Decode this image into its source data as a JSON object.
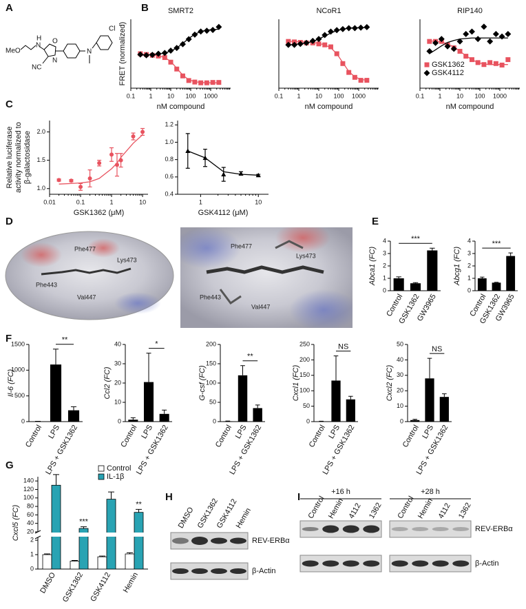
{
  "panel_labels": [
    "A",
    "B",
    "C",
    "D",
    "E",
    "F",
    "G",
    "H",
    "I"
  ],
  "structure": {
    "labels": [
      "MeO",
      "N",
      "H",
      "O",
      "N",
      "NC",
      "N",
      "Cl"
    ]
  },
  "docking": {
    "overview": [
      "Phe477",
      "Lys473",
      "Phe443",
      "Val447"
    ],
    "closeup": [
      "Phe477",
      "Lys473",
      "Phe443",
      "Val447"
    ]
  },
  "blot_h": {
    "lanes": [
      "DMSO",
      "GSK1362",
      "GSK4112",
      "Hemin"
    ],
    "rows": [
      "REV-ERBα",
      "β-Actin"
    ]
  },
  "blot_i": {
    "groups": [
      {
        "time": "+16 h",
        "lanes": [
          "Control",
          "Hemin",
          "4112",
          "1362"
        ]
      },
      {
        "time": "+28 h",
        "lanes": [
          "Control",
          "Hemin",
          "4112",
          "1362"
        ]
      }
    ],
    "rows": [
      "REV-ERBα",
      "β-Actin"
    ]
  },
  "chart_data": [
    {
      "type": "scatter",
      "title": "SMRT2",
      "x_label": "nM compound",
      "y_label": "FRET (normalized)",
      "xscale": "log",
      "xlim": [
        0.1,
        10000
      ],
      "xticks": [
        0.1,
        1,
        10,
        100,
        1000
      ],
      "ylim": [
        0,
        180
      ],
      "x": [
        0.3,
        0.6,
        1.2,
        2.4,
        5,
        10,
        20,
        40,
        80,
        160,
        320,
        640,
        1280,
        2560
      ],
      "series": [
        {
          "color": "#e8535f",
          "marker": "square",
          "values": [
            90,
            88,
            86,
            84,
            80,
            68,
            50,
            32,
            20,
            16,
            14,
            14,
            15,
            15
          ],
          "fit": [
            89,
            88,
            87,
            85,
            80,
            70,
            52,
            34,
            22,
            17,
            15,
            14,
            14,
            14
          ]
        },
        {
          "color": "#000000",
          "marker": "diamond",
          "values": [
            88,
            86,
            87,
            90,
            92,
            98,
            105,
            115,
            128,
            140,
            148,
            150,
            152,
            160
          ],
          "fit": [
            87,
            87,
            88,
            89,
            92,
            97,
            105,
            117,
            130,
            141,
            148,
            152,
            153,
            154
          ]
        }
      ]
    },
    {
      "type": "scatter",
      "title": "NCoR1",
      "x_label": "nM compound",
      "xscale": "log",
      "xlim": [
        0.1,
        10000
      ],
      "xticks": [
        0.1,
        1,
        10,
        100,
        1000
      ],
      "ylim": [
        0,
        140
      ],
      "x": [
        0.3,
        0.6,
        1.2,
        2.4,
        5,
        10,
        20,
        40,
        80,
        160,
        320,
        640,
        1280,
        2560
      ],
      "series": [
        {
          "color": "#e8535f",
          "marker": "square",
          "values": [
            95,
            94,
            93,
            92,
            92,
            90,
            88,
            84,
            70,
            50,
            32,
            22,
            16,
            16
          ],
          "fit": [
            95,
            95,
            94,
            94,
            93,
            91,
            88,
            82,
            70,
            52,
            34,
            23,
            18,
            16
          ]
        },
        {
          "color": "#000000",
          "marker": "diamond",
          "values": [
            88,
            88,
            90,
            92,
            96,
            100,
            108,
            115,
            118,
            120,
            122,
            122,
            123,
            124
          ],
          "fit": [
            88,
            89,
            90,
            92,
            95,
            100,
            106,
            112,
            117,
            120,
            122,
            123,
            123,
            123
          ]
        }
      ]
    },
    {
      "type": "scatter",
      "title": "RIP140",
      "x_label": "nM compound",
      "xscale": "log",
      "legend": "lower left",
      "xlim": [
        0.1,
        10000
      ],
      "xticks": [
        0.1,
        1,
        10,
        100,
        1000
      ],
      "ylim": [
        0,
        140
      ],
      "x": [
        0.3,
        0.6,
        1.2,
        2.4,
        5,
        10,
        20,
        40,
        80,
        160,
        320,
        640,
        1280,
        2560
      ],
      "series": [
        {
          "name": "GSK1362",
          "color": "#e8535f",
          "marker": "square",
          "values": [
            95,
            95,
            95,
            88,
            82,
            75,
            65,
            58,
            52,
            48,
            52,
            50,
            47,
            58
          ],
          "fit": [
            96,
            95,
            94,
            90,
            84,
            75,
            66,
            58,
            52,
            49,
            48,
            48,
            48,
            48
          ]
        },
        {
          "name": "GSK4112",
          "color": "#000000",
          "marker": "diamond",
          "values": [
            75,
            92,
            100,
            85,
            80,
            95,
            110,
            115,
            100,
            125,
            95,
            110,
            105,
            110
          ],
          "fit": [
            70,
            78,
            86,
            93,
            97,
            100,
            101,
            102,
            102,
            102,
            102,
            102,
            102,
            102
          ]
        }
      ]
    },
    {
      "type": "scatter",
      "x_label": "GSK1362 (μM)",
      "y_label": [
        "Relative luciferase",
        "activity normalized to",
        "β-galactosidase"
      ],
      "xscale": "log",
      "xlim": [
        0.01,
        15
      ],
      "xticks": [
        0.01,
        0.1,
        1,
        10
      ],
      "ylim": [
        0.9,
        2.2
      ],
      "yticks": [
        {
          "value": 1,
          "label": "1.0"
        },
        1.5,
        {
          "value": 2,
          "label": "2.0"
        }
      ],
      "color": "#e8535f",
      "marker": "circle",
      "x": [
        0.02,
        0.05,
        0.1,
        0.2,
        0.4,
        1,
        1.5,
        2,
        5,
        10
      ],
      "values": [
        1.15,
        1.14,
        1.03,
        1.18,
        1.45,
        1.6,
        1.42,
        1.5,
        1.92,
        2.0
      ],
      "errors": [
        0.02,
        0.02,
        0.06,
        0.15,
        0.05,
        0.12,
        0.2,
        0.12,
        0.06,
        0.06
      ],
      "fit": [
        1.08,
        1.09,
        1.1,
        1.12,
        1.18,
        1.35,
        1.45,
        1.55,
        1.8,
        1.95
      ]
    },
    {
      "type": "scatter",
      "x_label": "GSK4112 (μM)",
      "xscale": "log",
      "xlim": [
        0.4,
        15
      ],
      "xticks": [
        1,
        10
      ],
      "ylim": [
        0.4,
        1.25
      ],
      "yticks": [
        0.4,
        0.6,
        0.8,
        {
          "value": 1,
          "label": "1.0"
        },
        1.2
      ],
      "color": "#000000",
      "marker": "triangle",
      "x": [
        0.6,
        1.2,
        2.5,
        5,
        10
      ],
      "values": [
        0.9,
        0.82,
        0.63,
        0.64,
        0.62
      ],
      "errors": [
        0.2,
        0.1,
        0.08,
        0.02,
        0.01
      ],
      "fit": [
        0.9,
        0.82,
        0.66,
        0.63,
        0.62
      ]
    },
    {
      "type": "bar",
      "y_label": "Abca1 (FC)",
      "categories": [
        "Control",
        "GSK1362",
        "GW3965"
      ],
      "values": [
        1.0,
        0.6,
        3.25
      ],
      "errors": [
        0.12,
        0.05,
        0.18
      ],
      "color": "#000000",
      "ylim": [
        0,
        4
      ],
      "yticks": [
        0,
        1,
        2,
        3,
        4
      ],
      "bracket": [
        "Control",
        "GW3965"
      ],
      "significance": "***"
    },
    {
      "type": "bar",
      "y_label": "Abcg1 (FC)",
      "categories": [
        "Control",
        "GSK1362",
        "GW3965"
      ],
      "values": [
        1.0,
        0.65,
        2.8
      ],
      "errors": [
        0.1,
        0.03,
        0.25
      ],
      "color": "#000000",
      "ylim": [
        0,
        4
      ],
      "yticks": [
        0,
        1,
        2,
        3,
        4
      ],
      "bracket": [
        "Control",
        "GW3965"
      ],
      "significance": "***"
    },
    {
      "type": "bar",
      "y_label": "Il-6 (FC)",
      "categories": [
        "Control",
        "LPS",
        "LPS + GSK1362"
      ],
      "values": [
        5,
        1110,
        220
      ],
      "errors": [
        2,
        300,
        70
      ],
      "color": "#000000",
      "ylim": [
        0,
        1500
      ],
      "yticks": [
        0,
        500,
        1000,
        1500
      ],
      "bracket": [
        "LPS",
        "LPS + GSK1362"
      ],
      "significance": "**"
    },
    {
      "type": "bar",
      "y_label": "Ccl2 (FC)",
      "categories": [
        "Control",
        "LPS",
        "LPS + GSK1362"
      ],
      "values": [
        1,
        20.5,
        4
      ],
      "errors": [
        1,
        15,
        2
      ],
      "color": "#000000",
      "ylim": [
        0,
        40
      ],
      "yticks": [
        0,
        10,
        20,
        30,
        40
      ],
      "bracket": [
        "LPS",
        "LPS + GSK1362"
      ],
      "significance": "*"
    },
    {
      "type": "bar",
      "y_label": "G-csf (FC)",
      "categories": [
        "Control",
        "LPS",
        "LPS + GSK1362"
      ],
      "values": [
        1,
        120,
        35
      ],
      "errors": [
        0.5,
        25,
        8
      ],
      "color": "#000000",
      "ylim": [
        0,
        200
      ],
      "yticks": [
        0,
        50,
        100,
        150,
        200
      ],
      "bracket": [
        "LPS",
        "LPS + GSK1362"
      ],
      "significance": "**"
    },
    {
      "type": "bar",
      "y_label": "Cxcl1 (FC)",
      "categories": [
        "Control",
        "LPS",
        "LPS + GSK1362"
      ],
      "values": [
        1,
        133,
        72
      ],
      "errors": [
        0.5,
        80,
        10
      ],
      "color": "#000000",
      "ylim": [
        0,
        250
      ],
      "yticks": [
        0,
        50,
        100,
        150,
        200,
        250
      ],
      "bracket": [
        "LPS",
        "LPS + GSK1362"
      ],
      "significance": "NS"
    },
    {
      "type": "bar",
      "y_label": "Cxcl2 (FC)",
      "categories": [
        "Control",
        "LPS",
        "LPS + GSK1362"
      ],
      "values": [
        1,
        28,
        16
      ],
      "errors": [
        0.5,
        13,
        2
      ],
      "color": "#000000",
      "ylim": [
        0,
        50
      ],
      "yticks": [
        0,
        10,
        20,
        30,
        40,
        50
      ],
      "bracket": [
        "LPS",
        "LPS + GSK1362"
      ],
      "significance": "NS"
    },
    {
      "type": "grouped_bar",
      "y_label": "Cxcl5 (FC)",
      "categories": [
        "DMSO",
        "GSK1362",
        "GSK4112",
        "Hemin"
      ],
      "ylim": [
        0,
        150
      ],
      "axis_break": [
        2.2,
        20
      ],
      "yticks": [
        0,
        1,
        2,
        20,
        40,
        60,
        80,
        100,
        120,
        140
      ],
      "legend": "upper right",
      "significance": [
        null,
        "***",
        null,
        "**"
      ],
      "series": [
        {
          "name": "Control",
          "color": "#ffffff",
          "values": [
            1.0,
            0.55,
            0.85,
            1.05
          ],
          "errors": [
            0.05,
            0.05,
            0.05,
            0.08
          ]
        },
        {
          "name": "IL-1β",
          "color": "#29a3b3",
          "values": [
            130,
            28,
            97,
            66
          ],
          "errors": [
            25,
            4,
            17,
            7
          ]
        }
      ]
    }
  ]
}
